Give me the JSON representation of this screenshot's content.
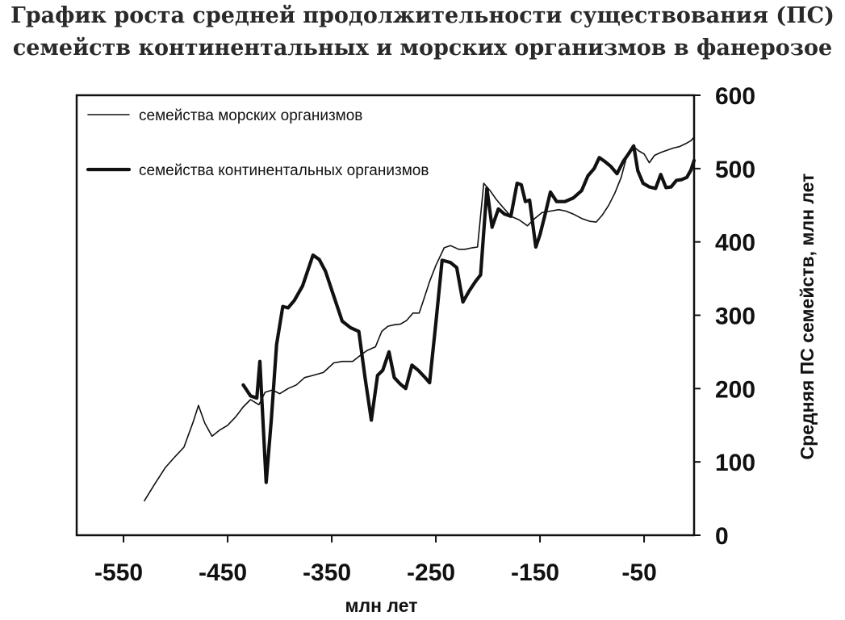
{
  "chart_data": {
    "type": "line",
    "title": "График роста средней продолжительности существования (ПС) семейств континентальных и морских организмов в фанерозое",
    "title_lines": [
      "График роста средней продолжительности существования (ПС)",
      "семейств континентальных и морских организмов в фанерозое"
    ],
    "xlabel": "млн лет",
    "ylabel": "Средняя ПС семейств, млн лет",
    "xlim": [
      -595,
      -2
    ],
    "ylim": [
      0,
      600
    ],
    "x_ticks": [
      -550,
      -450,
      -350,
      -250,
      -150,
      -50
    ],
    "y_ticks": [
      0,
      100,
      200,
      300,
      400,
      500,
      600
    ],
    "y_axis_side": "right",
    "grid": false,
    "legend_position": "top-left",
    "series": [
      {
        "name": "семейства морских организмов",
        "line_weight": "thin",
        "x": [
          -530,
          -520,
          -510,
          -500,
          -492,
          -483,
          -478,
          -472,
          -465,
          -458,
          -450,
          -442,
          -435,
          -428,
          -420,
          -414,
          -407,
          -400,
          -392,
          -384,
          -376,
          -368,
          -358,
          -348,
          -340,
          -330,
          -322,
          -316,
          -308,
          -302,
          -296,
          -290,
          -284,
          -278,
          -272,
          -266,
          -262,
          -256,
          -250,
          -242,
          -236,
          -228,
          -222,
          -215,
          -210,
          -204,
          -198,
          -192,
          -186,
          -178,
          -170,
          -162,
          -155,
          -148,
          -140,
          -132,
          -125,
          -118,
          -110,
          -102,
          -96,
          -90,
          -84,
          -78,
          -72,
          -66,
          -60,
          -55,
          -50,
          -45,
          -40,
          -34,
          -28,
          -22,
          -16,
          -10,
          -5,
          -2
        ],
        "values": [
          47,
          70,
          92,
          108,
          120,
          155,
          177,
          153,
          135,
          143,
          150,
          162,
          175,
          185,
          178,
          195,
          198,
          193,
          200,
          205,
          215,
          218,
          222,
          235,
          237,
          237,
          246,
          252,
          257,
          278,
          285,
          287,
          288,
          293,
          303,
          303,
          320,
          346,
          368,
          392,
          395,
          390,
          390,
          392,
          393,
          480,
          470,
          458,
          448,
          435,
          430,
          422,
          432,
          440,
          442,
          444,
          442,
          438,
          432,
          428,
          427,
          437,
          450,
          467,
          488,
          520,
          530,
          524,
          520,
          508,
          518,
          522,
          525,
          528,
          530,
          534,
          538,
          543
        ]
      },
      {
        "name": "семейства континентальных организмов",
        "line_weight": "thick",
        "x": [
          -435,
          -428,
          -422,
          -419,
          -413,
          -408,
          -403,
          -397,
          -392,
          -386,
          -378,
          -368,
          -362,
          -356,
          -349,
          -340,
          -332,
          -324,
          -318,
          -312,
          -306,
          -301,
          -295,
          -290,
          -284,
          -279,
          -273,
          -267,
          -261,
          -256,
          -250,
          -244,
          -236,
          -230,
          -224,
          -218,
          -212,
          -207,
          -201,
          -196,
          -190,
          -184,
          -178,
          -172,
          -168,
          -164,
          -160,
          -154,
          -150,
          -145,
          -140,
          -134,
          -126,
          -118,
          -110,
          -104,
          -98,
          -93,
          -88,
          -82,
          -76,
          -70,
          -65,
          -60,
          -56,
          -51,
          -45,
          -39,
          -34,
          -29,
          -24,
          -19,
          -14,
          -9,
          -5,
          -2
        ],
        "values": [
          205,
          190,
          187,
          237,
          72,
          158,
          260,
          312,
          310,
          320,
          340,
          382,
          376,
          360,
          330,
          292,
          283,
          278,
          215,
          157,
          218,
          225,
          250,
          215,
          206,
          200,
          232,
          225,
          216,
          208,
          290,
          375,
          372,
          365,
          318,
          333,
          346,
          355,
          473,
          420,
          445,
          438,
          435,
          480,
          478,
          455,
          457,
          393,
          410,
          438,
          468,
          455,
          455,
          460,
          470,
          490,
          500,
          515,
          510,
          503,
          493,
          510,
          520,
          531,
          497,
          480,
          475,
          473,
          492,
          474,
          475,
          484,
          485,
          488,
          498,
          511
        ]
      }
    ]
  },
  "colors": {
    "line": "#111111",
    "frame": "#111111",
    "title": "#2a2a2a"
  }
}
